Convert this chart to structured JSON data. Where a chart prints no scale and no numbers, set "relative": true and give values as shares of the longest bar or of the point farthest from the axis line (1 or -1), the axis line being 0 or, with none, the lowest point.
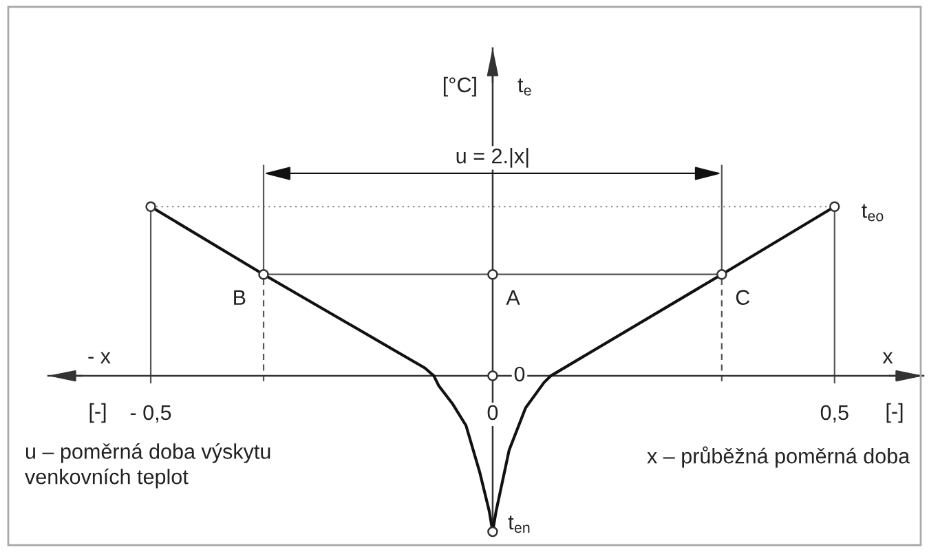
{
  "chart_data": {
    "type": "line",
    "relative": true,
    "grid": false,
    "xlim": [
      -0.65,
      0.63
    ],
    "xticks": [
      {
        "value": -0.5,
        "label": "- 0,5"
      },
      0,
      {
        "value": 0.5,
        "label": "0,5"
      }
    ],
    "xlabel": "x",
    "series": [
      {
        "color": "#111111",
        "x": [
          -0.5,
          -0.335,
          -0.099,
          -0.086,
          -0.079,
          -0.059,
          -0.039,
          -0.019,
          -0.005,
          0,
          0.005,
          0.024,
          0.048,
          0.075,
          0.085,
          0.101,
          0.335,
          0.5
        ],
        "values": [
          0.804,
          0.482,
          0.037,
          0.0,
          -0.046,
          -0.131,
          -0.236,
          -0.457,
          -0.643,
          -0.74,
          -0.643,
          -0.354,
          -0.153,
          -0.032,
          0.0,
          0.031,
          0.482,
          0.804
        ]
      },
      {
        "type": "line",
        "color": "#888888",
        "line_style": "dotted",
        "x": [
          -0.5,
          0.5
        ],
        "values": [
          0.804,
          0.804
        ]
      },
      {
        "type": "line",
        "color": "#555555",
        "x": [
          -0.335,
          0.335
        ],
        "values": [
          0.482,
          0.482
        ]
      },
      {
        "type": "line",
        "color": "#555555",
        "x": [
          -0.5,
          -0.5
        ],
        "values": [
          -0.033,
          0.804
        ]
      },
      {
        "type": "line",
        "color": "#555555",
        "x": [
          0.5,
          0.5
        ],
        "values": [
          -0.033,
          0.804
        ]
      },
      {
        "type": "line",
        "color": "#555555",
        "x": [
          -0.335,
          -0.335
        ],
        "values": [
          0.482,
          1.0
        ]
      },
      {
        "type": "line",
        "color": "#555555",
        "line_style": "dashed",
        "x": [
          -0.335,
          -0.335
        ],
        "values": [
          -0.026,
          0.482
        ]
      },
      {
        "type": "line",
        "color": "#555555",
        "x": [
          0.335,
          0.335
        ],
        "values": [
          0.482,
          1.0
        ]
      },
      {
        "type": "line",
        "color": "#555555",
        "line_style": "dashed",
        "x": [
          0.335,
          0.335
        ],
        "values": [
          -0.026,
          0.482
        ]
      },
      {
        "type": "scatter",
        "color": "#333333",
        "marker": "circle",
        "x": [
          -0.5,
          -0.335,
          0,
          0.335,
          0.5,
          0,
          0
        ],
        "values": [
          0.804,
          0.482,
          0.482,
          0.482,
          0.804,
          0.0,
          -0.74
        ]
      }
    ],
    "annotations": [
      "[°C]",
      "t$_{e}$",
      "u = 2.|x|",
      {
        "text": "t$_{eo}$",
        "x": 0.5,
        "y": 0.804
      },
      {
        "text": "B",
        "x": -0.335,
        "y": 0.482
      },
      {
        "text": "A",
        "x": 0,
        "y": 0.482
      },
      {
        "text": "C",
        "x": 0.335,
        "y": 0.482
      },
      {
        "text": "0",
        "x": 0,
        "y": 0.0
      },
      {
        "text": "t$_{en}$",
        "x": 0,
        "y": -0.74
      },
      "- x",
      "[-]",
      "[-]",
      "u – poměrná doba výskytu\nvenkovních teplot",
      "x – průběžná poměrná doba"
    ]
  }
}
